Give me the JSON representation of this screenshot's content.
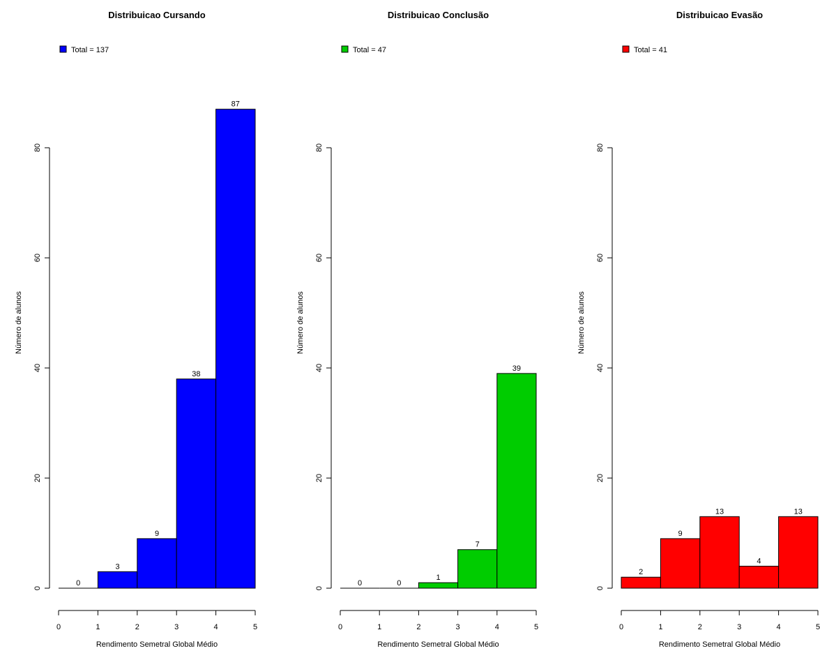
{
  "chart_data": [
    {
      "type": "bar",
      "title": "Distribuicao Cursando",
      "legend": "Total = 137",
      "xlabel": "Rendimento Semetral Global Médio",
      "ylabel": "Número de alunos",
      "bins": [
        [
          0,
          1
        ],
        [
          1,
          2
        ],
        [
          2,
          3
        ],
        [
          3,
          4
        ],
        [
          4,
          5
        ]
      ],
      "values": [
        0,
        3,
        9,
        38,
        87
      ],
      "data_labels": [
        "0",
        "3",
        "9",
        "38",
        "87"
      ],
      "xticks": [
        "0",
        "1",
        "2",
        "3",
        "4",
        "5"
      ],
      "yticks": [
        "0",
        "20",
        "40",
        "60",
        "80"
      ],
      "xlim": [
        0,
        5
      ],
      "ylim": [
        0,
        80
      ],
      "color": "#0000ff",
      "legend_position": "top-left"
    },
    {
      "type": "bar",
      "title": "Distribuicao Conclusão",
      "legend": "Total = 47",
      "xlabel": "Rendimento Semetral Global Médio",
      "ylabel": "Número de alunos",
      "bins": [
        [
          0,
          1
        ],
        [
          1,
          2
        ],
        [
          2,
          3
        ],
        [
          3,
          4
        ],
        [
          4,
          5
        ]
      ],
      "values": [
        0,
        0,
        1,
        7,
        39
      ],
      "data_labels": [
        "0",
        "0",
        "1",
        "7",
        "39"
      ],
      "xticks": [
        "0",
        "1",
        "2",
        "3",
        "4",
        "5"
      ],
      "yticks": [
        "0",
        "20",
        "40",
        "60",
        "80"
      ],
      "xlim": [
        0,
        5
      ],
      "ylim": [
        0,
        80
      ],
      "color": "#00cc00",
      "legend_position": "top-left"
    },
    {
      "type": "bar",
      "title": "Distribuicao Evasão",
      "legend": "Total = 41",
      "xlabel": "Rendimento Semetral Global Médio",
      "ylabel": "Número de alunos",
      "bins": [
        [
          0,
          1
        ],
        [
          1,
          2
        ],
        [
          2,
          3
        ],
        [
          3,
          4
        ],
        [
          4,
          5
        ]
      ],
      "values": [
        2,
        9,
        13,
        4,
        13
      ],
      "data_labels": [
        "2",
        "9",
        "13",
        "4",
        "13"
      ],
      "xticks": [
        "0",
        "1",
        "2",
        "3",
        "4",
        "5"
      ],
      "yticks": [
        "0",
        "20",
        "40",
        "60",
        "80"
      ],
      "xlim": [
        0,
        5
      ],
      "ylim": [
        0,
        80
      ],
      "color": "#ff0000",
      "legend_position": "top-left"
    }
  ]
}
